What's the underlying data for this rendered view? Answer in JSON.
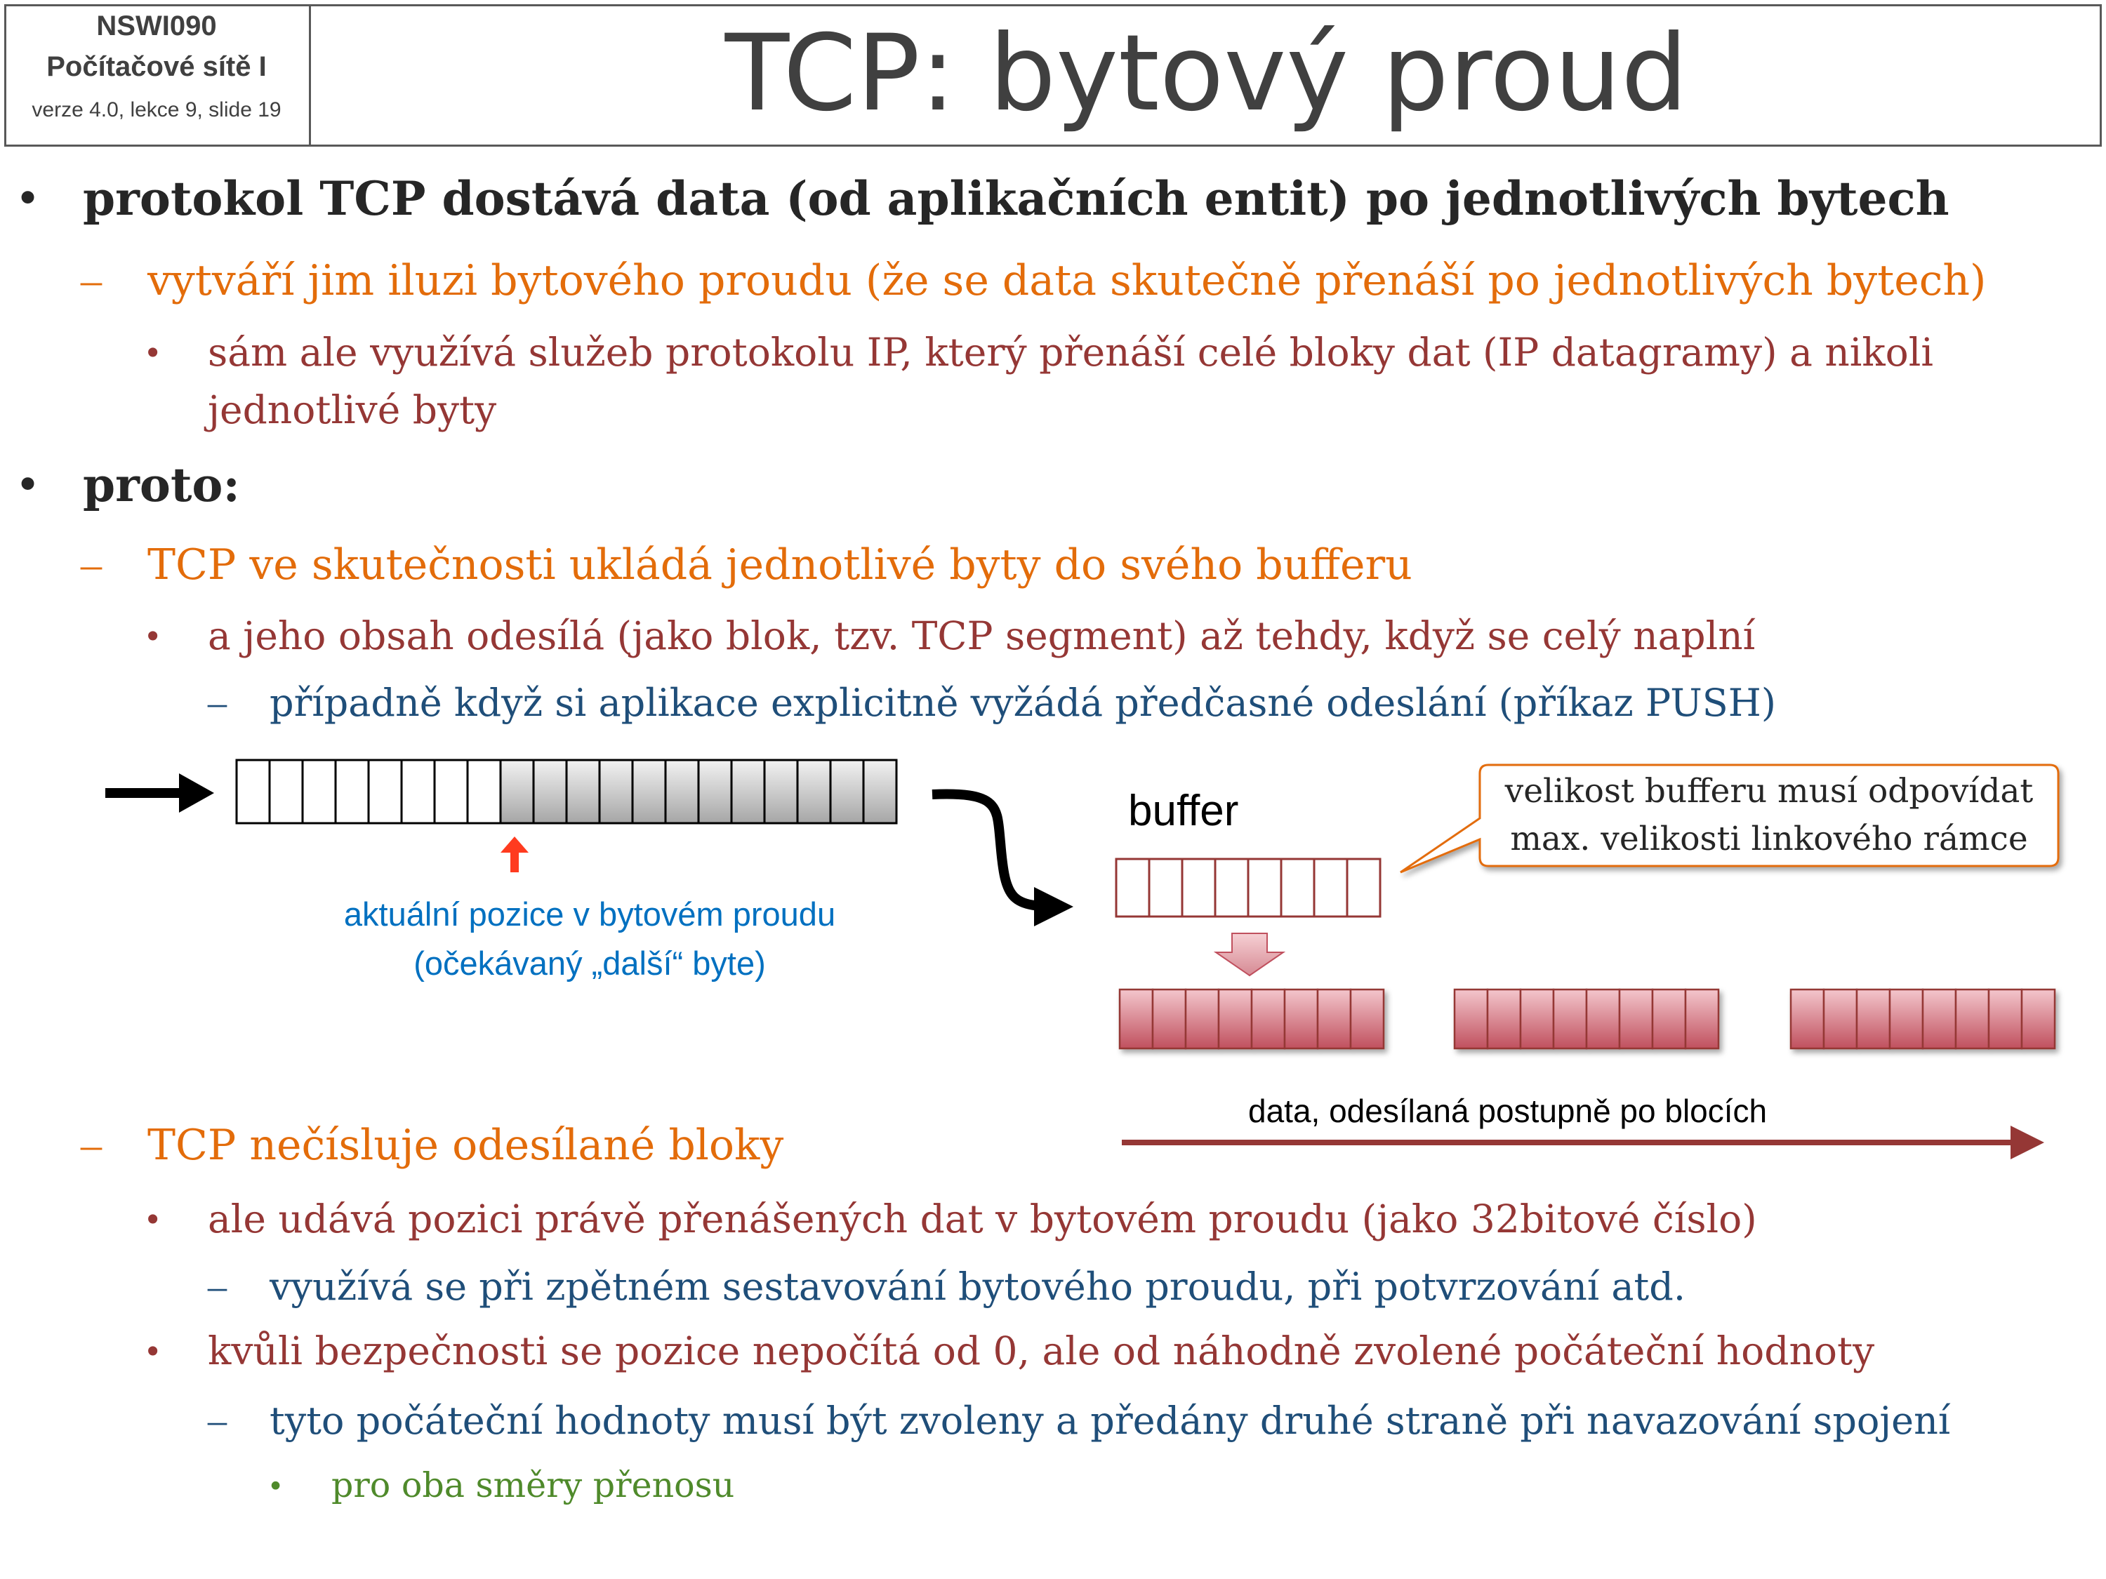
{
  "header": {
    "course_code": "NSWI090",
    "course_name": "Počítačové sítě I",
    "version": "verze 4.0, lekce 9, slide 19",
    "title": "TCP: bytový proud"
  },
  "bullets": {
    "b1": "protokol TCP dostává data (od aplikačních entit) po jednotlivých bytech",
    "b1_1": "vytváří jim iluzi bytového proudu (že se data skutečně přenáší po jednotlivých bytech)",
    "b1_1_1_line1": "sám ale využívá služeb protokolu IP, který přenáší celé bloky dat (IP datagramy) a nikoli",
    "b1_1_1_line2": "jednotlivé byty",
    "b2": "proto:",
    "b2_1": "TCP ve skutečnosti ukládá jednotlivé byty do svého bufferu",
    "b2_1_1": "a jeho obsah odesílá (jako blok, tzv. TCP segment) až tehdy, když se celý naplní",
    "b2_1_1_1": "případně když si aplikace explicitně vyžádá předčasné odeslání (příkaz PUSH)",
    "b2_2": "TCP nečísluje odesílané bloky",
    "b2_2_1": "ale udává pozici právě přenášených dat v bytovém proudu (jako 32bitové číslo)",
    "b2_2_1_1": "využívá se při zpětném sestavování bytového proudu, při potvrzování atd.",
    "b2_2_2": "kvůli bezpečnosti se pozice nepočítá od 0, ale od náhodně zvolené počáteční hodnoty",
    "b2_2_2_1": "tyto počáteční hodnoty musí být zvoleny a předány druhé straně při navazování spojení",
    "b2_2_2_1_1": "pro oba směry přenosu"
  },
  "markers": {
    "bullet": "•",
    "dash": "–"
  },
  "diagram": {
    "caption_line1": "aktuální pozice v bytovém proudu",
    "caption_line2": "(očekávaný „další“ byte)",
    "buffer_label": "buffer",
    "callout_line1": "velikost bufferu musí odpovídat",
    "callout_line2": "max. velikosti linkového rámce",
    "data_label": "data, odesílaná postupně po blocích",
    "stream_cells_total": 20,
    "stream_cells_empty": 8,
    "buffer_cells": 8,
    "segment_blocks": 3,
    "segment_cells_per_block": 8
  },
  "colors": {
    "title": "#404040",
    "level1": "#262626",
    "level2_orange": "#e36c0a",
    "level3_red": "#953735",
    "level4_blue": "#1f4e79",
    "level5_green": "#4f8a2b",
    "caption_blue": "#0070c0",
    "position_arrow": "#ff3b1f",
    "segment_fill": "#d9808a",
    "data_arrow": "#953735",
    "callout_border": "#e36c0a"
  }
}
